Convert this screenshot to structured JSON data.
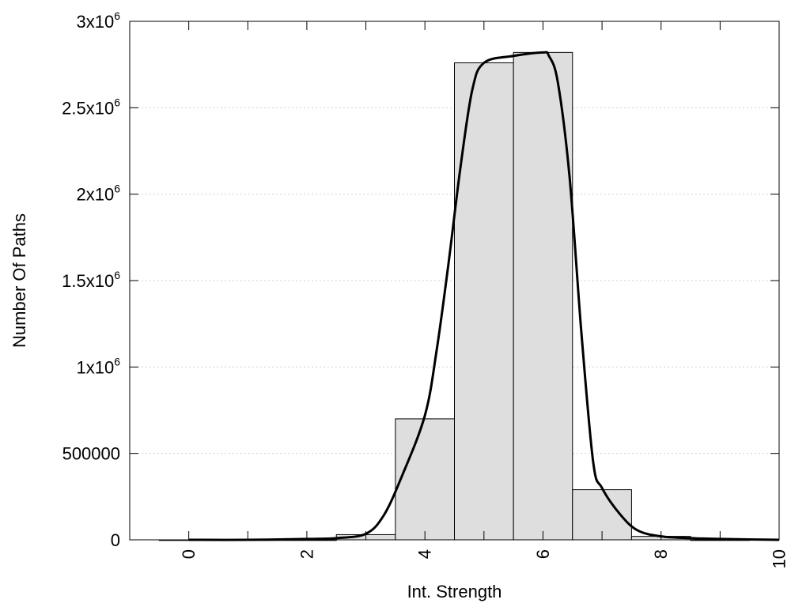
{
  "chart_data": {
    "type": "bar",
    "xlabel": "Int. Strength",
    "ylabel": "Number Of Paths",
    "xlim": [
      -1,
      10
    ],
    "ylim": [
      0,
      3000000
    ],
    "grid": true,
    "x_ticks": [
      {
        "value": 0,
        "label": "0"
      },
      {
        "value": 2,
        "label": "2"
      },
      {
        "value": 4,
        "label": "4"
      },
      {
        "value": 6,
        "label": "6"
      },
      {
        "value": 8,
        "label": "8"
      },
      {
        "value": 10,
        "label": "10"
      }
    ],
    "y_ticks": [
      {
        "value": 0,
        "label": "0",
        "exp": ""
      },
      {
        "value": 500000,
        "label": "500000",
        "exp": ""
      },
      {
        "value": 1000000,
        "label": "1x10",
        "exp": "6"
      },
      {
        "value": 1500000,
        "label": "1.5x10",
        "exp": "6"
      },
      {
        "value": 2000000,
        "label": "2x10",
        "exp": "6"
      },
      {
        "value": 2500000,
        "label": "2.5x10",
        "exp": "6"
      },
      {
        "value": 3000000,
        "label": "3x10",
        "exp": "6"
      }
    ],
    "bin_width": 1,
    "bars": [
      {
        "x": 0,
        "value": 0
      },
      {
        "x": 1,
        "value": 0
      },
      {
        "x": 2,
        "value": 0
      },
      {
        "x": 3,
        "value": 30000
      },
      {
        "x": 4,
        "value": 700000
      },
      {
        "x": 5,
        "value": 2760000
      },
      {
        "x": 6,
        "value": 2820000
      },
      {
        "x": 7,
        "value": 290000
      },
      {
        "x": 8,
        "value": 20000
      },
      {
        "x": 9,
        "value": 0
      }
    ],
    "curve": [
      {
        "x": 0,
        "y": 0
      },
      {
        "x": 1,
        "y": 0
      },
      {
        "x": 2,
        "y": 5000
      },
      {
        "x": 2.5,
        "y": 10000
      },
      {
        "x": 3,
        "y": 35000
      },
      {
        "x": 3.3,
        "y": 140000
      },
      {
        "x": 3.6,
        "y": 360000
      },
      {
        "x": 4,
        "y": 720000
      },
      {
        "x": 4.2,
        "y": 1100000
      },
      {
        "x": 4.4,
        "y": 1600000
      },
      {
        "x": 4.6,
        "y": 2150000
      },
      {
        "x": 4.8,
        "y": 2600000
      },
      {
        "x": 5,
        "y": 2760000
      },
      {
        "x": 5.5,
        "y": 2800000
      },
      {
        "x": 6,
        "y": 2820000
      },
      {
        "x": 6.1,
        "y": 2800000
      },
      {
        "x": 6.25,
        "y": 2650000
      },
      {
        "x": 6.45,
        "y": 2100000
      },
      {
        "x": 6.65,
        "y": 1200000
      },
      {
        "x": 6.85,
        "y": 450000
      },
      {
        "x": 7,
        "y": 300000
      },
      {
        "x": 7.3,
        "y": 150000
      },
      {
        "x": 7.6,
        "y": 55000
      },
      {
        "x": 8,
        "y": 20000
      },
      {
        "x": 8.5,
        "y": 10000
      },
      {
        "x": 9,
        "y": 5000
      },
      {
        "x": 10,
        "y": 0
      }
    ],
    "colors": {
      "bar_fill": "#dedede",
      "bar_stroke": "#000000",
      "curve": "#000000",
      "grid": "#d0d0d0"
    }
  }
}
